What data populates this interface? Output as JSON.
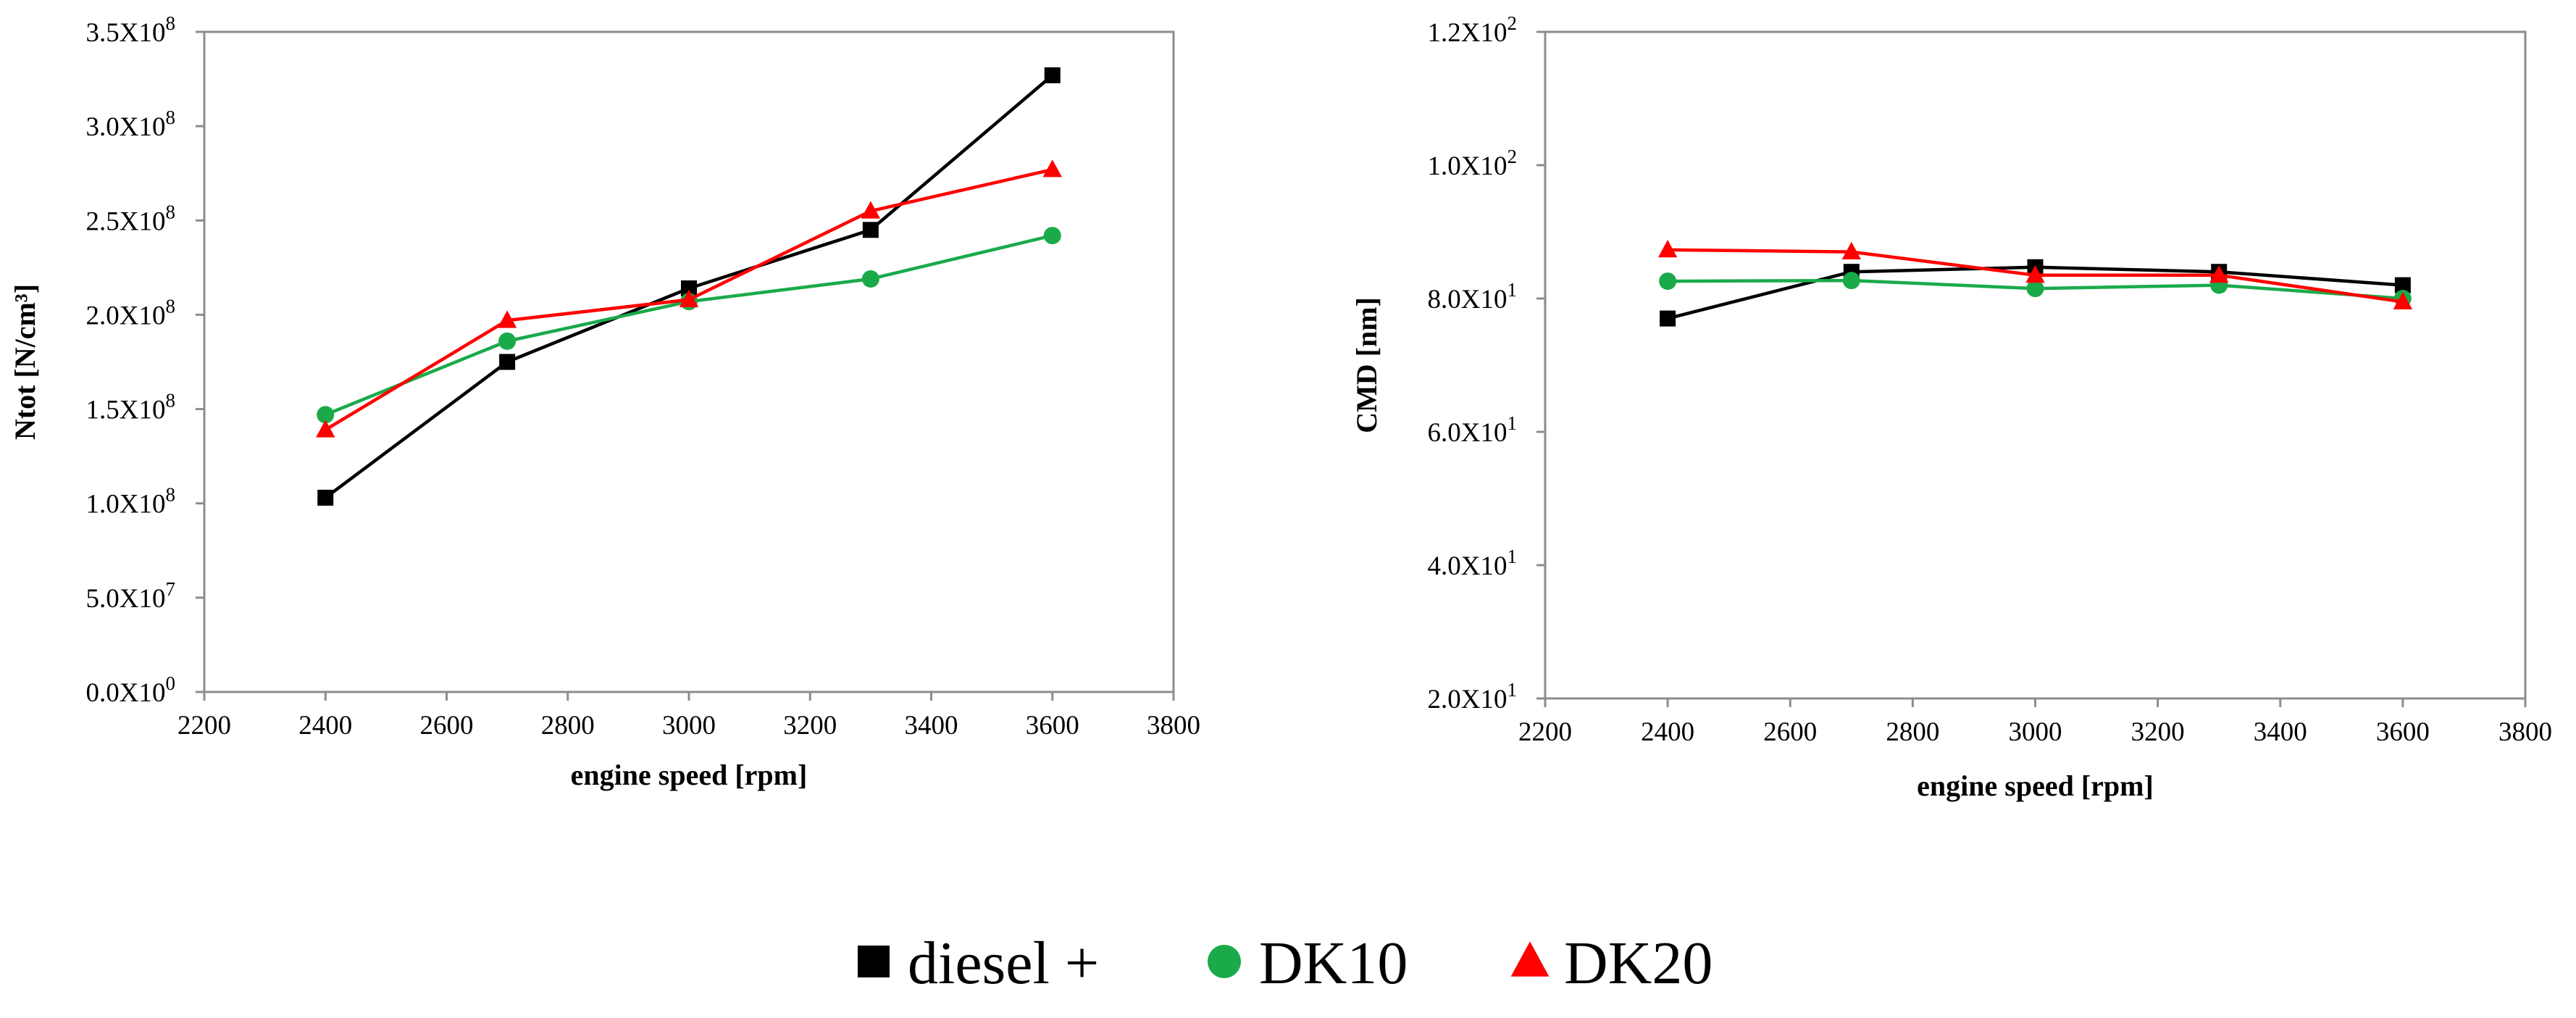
{
  "chart_data": [
    {
      "type": "line",
      "title": "",
      "xlabel": "engine speed [rpm]",
      "ylabel": "Ntot [N/cm³]",
      "xlim": [
        2200,
        3800
      ],
      "ylim": [
        0,
        350000000
      ],
      "grid": false,
      "x_ticks": [
        2200,
        2400,
        2600,
        2800,
        3000,
        3200,
        3400,
        3600,
        3800
      ],
      "y_ticks": [
        {
          "value": 0,
          "mantissa": "0.0X10",
          "exp": "0"
        },
        {
          "value": 50000000,
          "mantissa": "5.0X10",
          "exp": "7"
        },
        {
          "value": 100000000,
          "mantissa": "1.0X10",
          "exp": "8"
        },
        {
          "value": 150000000,
          "mantissa": "1.5X10",
          "exp": "8"
        },
        {
          "value": 200000000,
          "mantissa": "2.0X10",
          "exp": "8"
        },
        {
          "value": 250000000,
          "mantissa": "2.5X10",
          "exp": "8"
        },
        {
          "value": 300000000,
          "mantissa": "3.0X10",
          "exp": "8"
        },
        {
          "value": 350000000,
          "mantissa": "3.5X10",
          "exp": "8"
        }
      ],
      "series": [
        {
          "name": "diesel +",
          "color": "#000000",
          "marker": "square",
          "x": [
            2400,
            2700,
            3000,
            3300,
            3600
          ],
          "values": [
            103000000,
            175000000,
            214000000,
            245000000,
            327000000
          ]
        },
        {
          "name": "DK10",
          "color": "#1aaa4a",
          "marker": "circle",
          "x": [
            2400,
            2700,
            3000,
            3300,
            3600
          ],
          "values": [
            147000000,
            186000000,
            207000000,
            219000000,
            242000000
          ]
        },
        {
          "name": "DK20",
          "color": "#ff0000",
          "marker": "triangle",
          "x": [
            2400,
            2700,
            3000,
            3300,
            3600
          ],
          "values": [
            139000000,
            197000000,
            208000000,
            255000000,
            277000000
          ]
        }
      ]
    },
    {
      "type": "line",
      "title": "",
      "xlabel": "engine speed [rpm]",
      "ylabel": "CMD [nm]",
      "xlim": [
        2200,
        3800
      ],
      "ylim": [
        20,
        120
      ],
      "grid": false,
      "x_ticks": [
        2200,
        2400,
        2600,
        2800,
        3000,
        3200,
        3400,
        3600,
        3800
      ],
      "y_ticks": [
        {
          "value": 20,
          "mantissa": "2.0X10",
          "exp": "1"
        },
        {
          "value": 40,
          "mantissa": "4.0X10",
          "exp": "1"
        },
        {
          "value": 60,
          "mantissa": "6.0X10",
          "exp": "1"
        },
        {
          "value": 80,
          "mantissa": "8.0X10",
          "exp": "1"
        },
        {
          "value": 100,
          "mantissa": "1.0X10",
          "exp": "2"
        },
        {
          "value": 120,
          "mantissa": "1.2X10",
          "exp": "2"
        }
      ],
      "series": [
        {
          "name": "diesel +",
          "color": "#000000",
          "marker": "square",
          "x": [
            2400,
            2700,
            3000,
            3300,
            3600
          ],
          "values": [
            77,
            84,
            84.7,
            84,
            82
          ]
        },
        {
          "name": "DK10",
          "color": "#1aaa4a",
          "marker": "circle",
          "x": [
            2400,
            2700,
            3000,
            3300,
            3600
          ],
          "values": [
            82.6,
            82.7,
            81.5,
            82,
            80
          ]
        },
        {
          "name": "DK20",
          "color": "#ff0000",
          "marker": "triangle",
          "x": [
            2400,
            2700,
            3000,
            3300,
            3600
          ],
          "values": [
            87.3,
            87,
            83.5,
            83.5,
            79.5
          ]
        }
      ]
    }
  ],
  "legend": {
    "placement": "bottom-center",
    "items": [
      {
        "label": "diesel +",
        "color": "#000000",
        "marker": "square"
      },
      {
        "label": "DK10",
        "color": "#1aaa4a",
        "marker": "circle"
      },
      {
        "label": "DK20",
        "color": "#ff0000",
        "marker": "triangle"
      }
    ]
  }
}
